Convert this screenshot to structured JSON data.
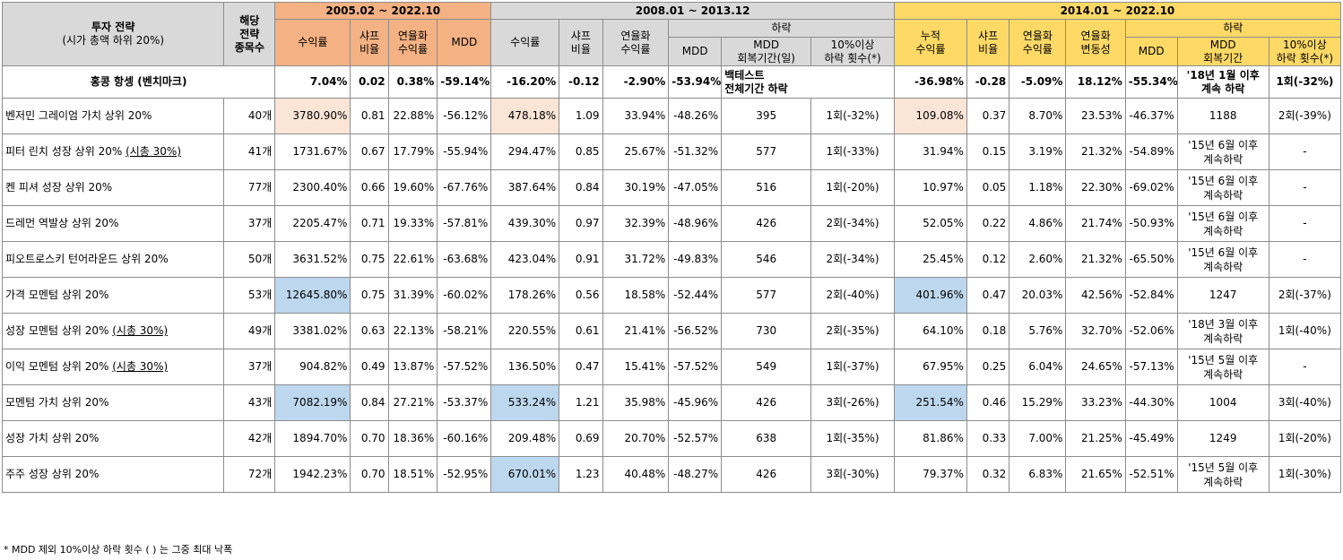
{
  "header": {
    "strategy": "투자 전략",
    "strategy_sub": "(시가 총액 하위 20%)",
    "count": "해당\n전략\n종목수",
    "p1": "2005.02 ~ 2022.10",
    "p2": "2008.01 ~ 2013.12",
    "p3": "2014.01 ~ 2022.10",
    "decline": "하락",
    "p1_cols": [
      "수익률",
      "샤프\n비율",
      "연율화\n수익률",
      "MDD"
    ],
    "p2_cols": [
      "수익률",
      "샤프\n비율",
      "연율화\n수익률"
    ],
    "p2_decline_cols": [
      "MDD",
      "MDD\n회복기간(일)",
      "10%이상\n하락 횟수(*)"
    ],
    "p3_cols": [
      "누적\n수익률",
      "샤프\n비율",
      "연율화\n수익률",
      "연율화\n변동성"
    ],
    "p3_decline_cols": [
      "MDD",
      "MDD\n회복기간",
      "10%이상\n하락 횟수(*)"
    ]
  },
  "benchmark": {
    "name": "홍콩 항셍 (벤치마크)",
    "p1": [
      "7.04%",
      "0.02",
      "0.38%",
      "-59.14%"
    ],
    "p2": [
      "-16.20%",
      "-0.12",
      "-2.90%",
      "-53.94%",
      "백테스트\n전체기간 하락",
      ""
    ],
    "p3": [
      "-36.98%",
      "-0.28",
      "-5.09%",
      "18.12%",
      "-55.34%",
      "'18년 1월 이후\n계속 하락",
      "1회(-32%)"
    ]
  },
  "rows": [
    {
      "name": "벤저민 그레이엄 가치 상위 20%",
      "name_suffix": "",
      "count": "40개",
      "p1": [
        "3780.90%",
        "0.81",
        "22.88%",
        "-56.12%"
      ],
      "p2": [
        "478.18%",
        "1.09",
        "33.94%",
        "-48.26%",
        "395",
        "1회(-32%)"
      ],
      "p3": [
        "109.08%",
        "0.37",
        "8.70%",
        "23.53%",
        "-46.37%",
        "1188",
        "2회(-39%)"
      ],
      "hl": [
        "o",
        "o",
        "o"
      ]
    },
    {
      "name": "피터 린치 성장 상위 20% ",
      "name_suffix": "(시총 30%)",
      "count": "41개",
      "p1": [
        "1731.67%",
        "0.67",
        "17.79%",
        "-55.94%"
      ],
      "p2": [
        "294.47%",
        "0.85",
        "25.67%",
        "-51.32%",
        "577",
        "1회(-33%)"
      ],
      "p3": [
        "31.94%",
        "0.15",
        "3.19%",
        "21.32%",
        "-54.89%",
        "'15년 6월 이후\n계속하락",
        "-"
      ],
      "hl": [
        "",
        "",
        ""
      ]
    },
    {
      "name": "켄 피셔 성장 상위 20%",
      "name_suffix": "",
      "count": "77개",
      "p1": [
        "2300.40%",
        "0.66",
        "19.60%",
        "-67.76%"
      ],
      "p2": [
        "387.64%",
        "0.84",
        "30.19%",
        "-47.05%",
        "516",
        "1회(-20%)"
      ],
      "p3": [
        "10.97%",
        "0.05",
        "1.18%",
        "22.30%",
        "-69.02%",
        "'15년 6월 이후\n계속하락",
        "-"
      ],
      "hl": [
        "",
        "",
        ""
      ]
    },
    {
      "name": "드레먼 역발상 상위 20%",
      "name_suffix": "",
      "count": "37개",
      "p1": [
        "2205.47%",
        "0.71",
        "19.33%",
        "-57.81%"
      ],
      "p2": [
        "439.30%",
        "0.97",
        "32.39%",
        "-48.96%",
        "426",
        "2회(-34%)"
      ],
      "p3": [
        "52.05%",
        "0.22",
        "4.86%",
        "21.74%",
        "-50.93%",
        "'15년 6월 이후\n계속하락",
        "-"
      ],
      "hl": [
        "",
        "",
        ""
      ]
    },
    {
      "name": "피오트로스키 턴어라운드 상위 20%",
      "name_suffix": "",
      "count": "50개",
      "p1": [
        "3631.52%",
        "0.75",
        "22.61%",
        "-63.68%"
      ],
      "p2": [
        "423.04%",
        "0.91",
        "31.72%",
        "-49.83%",
        "546",
        "2회(-34%)"
      ],
      "p3": [
        "25.45%",
        "0.12",
        "2.60%",
        "21.32%",
        "-65.50%",
        "'15년 6월 이후\n계속하락",
        "-"
      ],
      "hl": [
        "",
        "",
        ""
      ]
    },
    {
      "name": "가격 모멘텀 상위 20%",
      "name_suffix": "",
      "count": "53개",
      "p1": [
        "12645.80%",
        "0.75",
        "31.39%",
        "-60.02%"
      ],
      "p2": [
        "178.26%",
        "0.56",
        "18.58%",
        "-52.44%",
        "577",
        "2회(-40%)"
      ],
      "p3": [
        "401.96%",
        "0.47",
        "20.03%",
        "42.56%",
        "-52.84%",
        "1247",
        "2회(-37%)"
      ],
      "hl": [
        "b",
        "",
        "b"
      ]
    },
    {
      "name": "성장 모멘텀 상위 20% ",
      "name_suffix": "(시총 30%)",
      "count": "49개",
      "p1": [
        "3381.02%",
        "0.63",
        "22.13%",
        "-58.21%"
      ],
      "p2": [
        "220.55%",
        "0.61",
        "21.41%",
        "-56.52%",
        "730",
        "2회(-35%)"
      ],
      "p3": [
        "64.10%",
        "0.18",
        "5.76%",
        "32.70%",
        "-52.06%",
        "'18년 3월 이후\n계속하락",
        "1회(-40%)"
      ],
      "hl": [
        "",
        "",
        ""
      ]
    },
    {
      "name": "이익 모멘텀 상위 20% ",
      "name_suffix": "(시총 30%)",
      "count": "37개",
      "p1": [
        "904.82%",
        "0.49",
        "13.87%",
        "-57.52%"
      ],
      "p2": [
        "136.50%",
        "0.47",
        "15.41%",
        "-57.52%",
        "549",
        "1회(-37%)"
      ],
      "p3": [
        "67.95%",
        "0.25",
        "6.04%",
        "24.65%",
        "-57.13%",
        "'15년 5월 이후\n계속하락",
        "-"
      ],
      "hl": [
        "",
        "",
        ""
      ]
    },
    {
      "name": "모멘텀 가치 상위 20%",
      "name_suffix": "",
      "count": "43개",
      "p1": [
        "7082.19%",
        "0.84",
        "27.21%",
        "-53.37%"
      ],
      "p2": [
        "533.24%",
        "1.21",
        "35.98%",
        "-45.96%",
        "426",
        "3회(-26%)"
      ],
      "p3": [
        "251.54%",
        "0.46",
        "15.29%",
        "33.23%",
        "-44.30%",
        "1004",
        "3회(-40%)"
      ],
      "hl": [
        "b",
        "b",
        "b"
      ]
    },
    {
      "name": "성장 가치 상위 20%",
      "name_suffix": "",
      "count": "42개",
      "p1": [
        "1894.70%",
        "0.70",
        "18.36%",
        "-60.16%"
      ],
      "p2": [
        "209.48%",
        "0.69",
        "20.70%",
        "-52.57%",
        "638",
        "1회(-35%)"
      ],
      "p3": [
        "81.86%",
        "0.33",
        "7.00%",
        "21.25%",
        "-45.49%",
        "1249",
        "1회(-20%)"
      ],
      "hl": [
        "",
        "",
        ""
      ]
    },
    {
      "name": "주주 성장 상위 20%",
      "name_suffix": "",
      "count": "72개",
      "p1": [
        "1942.23%",
        "0.70",
        "18.51%",
        "-52.95%"
      ],
      "p2": [
        "670.01%",
        "1.23",
        "40.48%",
        "-48.27%",
        "426",
        "3회(-30%)"
      ],
      "p3": [
        "79.37%",
        "0.32",
        "6.83%",
        "21.65%",
        "-52.51%",
        "'15년 5월 이후\n계속하락",
        "1회(-30%)"
      ],
      "hl": [
        "",
        "b",
        ""
      ]
    }
  ],
  "footnote": "* MDD 제외 10%이상 하락 횟수 ( ) 는 그중 최대 낙폭",
  "colors": {
    "period1": "#f4b183",
    "period2": "#d9d9d9",
    "period3": "#ffd966",
    "highlight_orange": "#fbe5d6",
    "highlight_blue": "#bdd7ee"
  }
}
